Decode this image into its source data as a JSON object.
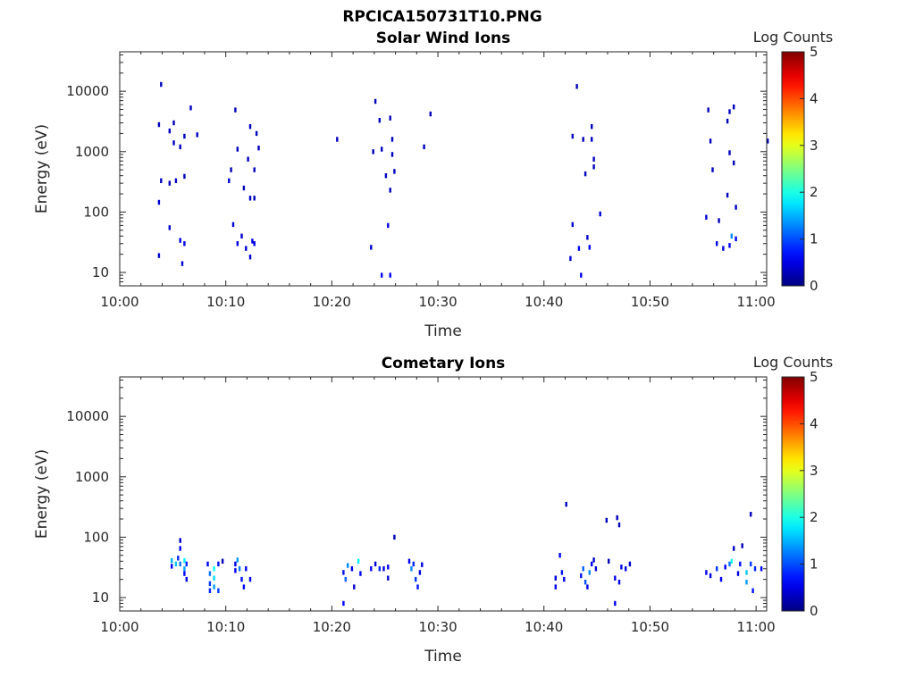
{
  "suptitle": "RPCICA150731T10.PNG",
  "chart_data": [
    {
      "type": "heatmap",
      "title": "Solar Wind Ions",
      "xlabel": "Time",
      "ylabel": "Energy (eV)",
      "xlim": [
        "10:00",
        "11:01"
      ],
      "ylim": [
        6,
        45000
      ],
      "y_scale": "log",
      "x_ticks": [
        "10:00",
        "10:10",
        "10:20",
        "10:30",
        "10:40",
        "10:50",
        "11:00"
      ],
      "y_ticks": [
        "10",
        "100",
        "1000",
        "10000"
      ],
      "colorbar": {
        "label": "Log Counts",
        "range": [
          0,
          5
        ],
        "ticks": [
          "0",
          "1",
          "2",
          "3",
          "4",
          "5"
        ],
        "colormap": "jet"
      },
      "cells": [
        {
          "t": "10:03.8",
          "e": 13000,
          "v": 0.3
        },
        {
          "t": "10:03.6",
          "e": 2800,
          "v": 0.3
        },
        {
          "t": "10:03.6",
          "e": 145,
          "v": 0.4
        },
        {
          "t": "10:03.8",
          "e": 330,
          "v": 0.3
        },
        {
          "t": "10:03.6",
          "e": 19,
          "v": 0.4
        },
        {
          "t": "10:04.6",
          "e": 300,
          "v": 0.3
        },
        {
          "t": "10:04.6",
          "e": 55,
          "v": 0.4
        },
        {
          "t": "10:04.6",
          "e": 2200,
          "v": 0.3
        },
        {
          "t": "10:05.0",
          "e": 3000,
          "v": 0.3
        },
        {
          "t": "10:05.0",
          "e": 1400,
          "v": 0.3
        },
        {
          "t": "10:05.2",
          "e": 330,
          "v": 0.3
        },
        {
          "t": "10:05.6",
          "e": 1200,
          "v": 0.3
        },
        {
          "t": "10:05.6",
          "e": 34,
          "v": 0.5
        },
        {
          "t": "10:05.8",
          "e": 14,
          "v": 0.4
        },
        {
          "t": "10:06.0",
          "e": 30,
          "v": 0.5
        },
        {
          "t": "10:06.0",
          "e": 390,
          "v": 0.3
        },
        {
          "t": "10:06.0",
          "e": 1800,
          "v": 0.3
        },
        {
          "t": "10:06.6",
          "e": 5300,
          "v": 0.3
        },
        {
          "t": "10:07.2",
          "e": 1900,
          "v": 0.3
        },
        {
          "t": "10:10.2",
          "e": 330,
          "v": 0.4
        },
        {
          "t": "10:10.4",
          "e": 500,
          "v": 0.3
        },
        {
          "t": "10:10.6",
          "e": 62,
          "v": 0.4
        },
        {
          "t": "10:10.8",
          "e": 4900,
          "v": 0.3
        },
        {
          "t": "10:11.0",
          "e": 1100,
          "v": 0.3
        },
        {
          "t": "10:11.0",
          "e": 30,
          "v": 0.5
        },
        {
          "t": "10:11.4",
          "e": 40,
          "v": 0.4
        },
        {
          "t": "10:11.6",
          "e": 250,
          "v": 0.3
        },
        {
          "t": "10:11.8",
          "e": 25,
          "v": 0.4
        },
        {
          "t": "10:12.0",
          "e": 750,
          "v": 0.3
        },
        {
          "t": "10:12.2",
          "e": 2600,
          "v": 0.3
        },
        {
          "t": "10:12.2",
          "e": 170,
          "v": 0.3
        },
        {
          "t": "10:12.4",
          "e": 33,
          "v": 0.5
        },
        {
          "t": "10:12.6",
          "e": 500,
          "v": 0.3
        },
        {
          "t": "10:12.6",
          "e": 170,
          "v": 0.3
        },
        {
          "t": "10:12.8",
          "e": 2000,
          "v": 0.3
        },
        {
          "t": "10:13.0",
          "e": 1150,
          "v": 0.3
        },
        {
          "t": "10:12.6",
          "e": 30,
          "v": 0.5
        },
        {
          "t": "10:12.2",
          "e": 18,
          "v": 0.4
        },
        {
          "t": "10:20.4",
          "e": 1600,
          "v": 0.3
        },
        {
          "t": "10:23.6",
          "e": 26,
          "v": 0.4
        },
        {
          "t": "10:23.8",
          "e": 1000,
          "v": 0.3
        },
        {
          "t": "10:24.0",
          "e": 6800,
          "v": 0.3
        },
        {
          "t": "10:24.4",
          "e": 3300,
          "v": 0.3
        },
        {
          "t": "10:24.6",
          "e": 9,
          "v": 0.6
        },
        {
          "t": "10:24.6",
          "e": 1100,
          "v": 0.3
        },
        {
          "t": "10:25.0",
          "e": 400,
          "v": 0.3
        },
        {
          "t": "10:25.2",
          "e": 60,
          "v": 0.5
        },
        {
          "t": "10:25.4",
          "e": 3600,
          "v": 0.3
        },
        {
          "t": "10:25.4",
          "e": 230,
          "v": 0.3
        },
        {
          "t": "10:25.6",
          "e": 1600,
          "v": 0.3
        },
        {
          "t": "10:25.6",
          "e": 900,
          "v": 0.3
        },
        {
          "t": "10:25.4",
          "e": 9,
          "v": 0.6
        },
        {
          "t": "10:25.8",
          "e": 470,
          "v": 0.3
        },
        {
          "t": "10:28.6",
          "e": 1200,
          "v": 0.3
        },
        {
          "t": "10:29.2",
          "e": 4200,
          "v": 0.3
        },
        {
          "t": "10:42.4",
          "e": 17,
          "v": 0.4
        },
        {
          "t": "10:42.6",
          "e": 62,
          "v": 0.4
        },
        {
          "t": "10:42.6",
          "e": 1800,
          "v": 0.3
        },
        {
          "t": "10:43.0",
          "e": 12000,
          "v": 0.3
        },
        {
          "t": "10:43.2",
          "e": 25,
          "v": 0.6
        },
        {
          "t": "10:43.4",
          "e": 9,
          "v": 0.6
        },
        {
          "t": "10:43.6",
          "e": 1600,
          "v": 0.3
        },
        {
          "t": "10:43.8",
          "e": 430,
          "v": 0.3
        },
        {
          "t": "10:44.0",
          "e": 38,
          "v": 0.4
        },
        {
          "t": "10:44.2",
          "e": 26,
          "v": 0.6
        },
        {
          "t": "10:44.4",
          "e": 1600,
          "v": 0.3
        },
        {
          "t": "10:44.4",
          "e": 2600,
          "v": 0.3
        },
        {
          "t": "10:44.6",
          "e": 750,
          "v": 0.3
        },
        {
          "t": "10:44.6",
          "e": 560,
          "v": 0.3
        },
        {
          "t": "10:45.2",
          "e": 93,
          "v": 0.4
        },
        {
          "t": "10:55.2",
          "e": 82,
          "v": 0.4
        },
        {
          "t": "10:55.4",
          "e": 4900,
          "v": 0.3
        },
        {
          "t": "10:55.6",
          "e": 1500,
          "v": 0.3
        },
        {
          "t": "10:55.8",
          "e": 500,
          "v": 0.3
        },
        {
          "t": "10:56.2",
          "e": 30,
          "v": 0.5
        },
        {
          "t": "10:56.4",
          "e": 72,
          "v": 0.3
        },
        {
          "t": "10:56.8",
          "e": 25,
          "v": 0.5
        },
        {
          "t": "10:57.2",
          "e": 3200,
          "v": 0.3
        },
        {
          "t": "10:57.2",
          "e": 190,
          "v": 0.3
        },
        {
          "t": "10:57.4",
          "e": 4600,
          "v": 0.3
        },
        {
          "t": "10:57.4",
          "e": 28,
          "v": 0.6
        },
        {
          "t": "10:57.6",
          "e": 40,
          "v": 1.3
        },
        {
          "t": "10:57.4",
          "e": 960,
          "v": 0.3
        },
        {
          "t": "10:57.8",
          "e": 5500,
          "v": 0.3
        },
        {
          "t": "10:57.8",
          "e": 650,
          "v": 0.3
        },
        {
          "t": "10:58.0",
          "e": 120,
          "v": 0.3
        },
        {
          "t": "10:58.0",
          "e": 36,
          "v": 0.6
        },
        {
          "t": "11:01.0",
          "e": 1500,
          "v": 0.3
        }
      ]
    },
    {
      "type": "heatmap",
      "title": "Cometary Ions",
      "xlabel": "Time",
      "ylabel": "Energy (eV)",
      "xlim": [
        "10:00",
        "11:01"
      ],
      "ylim": [
        6,
        45000
      ],
      "y_scale": "log",
      "x_ticks": [
        "10:00",
        "10:10",
        "10:20",
        "10:30",
        "10:40",
        "10:50",
        "11:00"
      ],
      "y_ticks": [
        "10",
        "100",
        "1000",
        "10000"
      ],
      "colorbar": {
        "label": "Log Counts",
        "range": [
          0,
          5
        ],
        "ticks": [
          "0",
          "1",
          "2",
          "3",
          "4",
          "5"
        ],
        "colormap": "jet"
      },
      "cells": [
        {
          "t": "10:04.8",
          "e": 41,
          "v": 1.5
        },
        {
          "t": "10:04.8",
          "e": 33,
          "v": 0.6
        },
        {
          "t": "10:05.2",
          "e": 36,
          "v": 1.6
        },
        {
          "t": "10:05.4",
          "e": 45,
          "v": 0.8
        },
        {
          "t": "10:05.6",
          "e": 36,
          "v": 1.2
        },
        {
          "t": "10:05.6",
          "e": 65,
          "v": 0.6
        },
        {
          "t": "10:05.6",
          "e": 88,
          "v": 0.4
        },
        {
          "t": "10:06.0",
          "e": 30,
          "v": 1.4
        },
        {
          "t": "10:06.0",
          "e": 41,
          "v": 1.8
        },
        {
          "t": "10:06.0",
          "e": 25,
          "v": 0.6
        },
        {
          "t": "10:06.2",
          "e": 20,
          "v": 0.5
        },
        {
          "t": "10:06.2",
          "e": 36,
          "v": 0.8
        },
        {
          "t": "10:08.2",
          "e": 36,
          "v": 0.6
        },
        {
          "t": "10:08.4",
          "e": 25,
          "v": 1.2
        },
        {
          "t": "10:08.4",
          "e": 17,
          "v": 0.9
        },
        {
          "t": "10:08.4",
          "e": 13,
          "v": 0.8
        },
        {
          "t": "10:08.8",
          "e": 30,
          "v": 1.9
        },
        {
          "t": "10:08.8",
          "e": 21,
          "v": 1.7
        },
        {
          "t": "10:08.8",
          "e": 15,
          "v": 1.4
        },
        {
          "t": "10:09.2",
          "e": 13,
          "v": 0.9
        },
        {
          "t": "10:09.2",
          "e": 36,
          "v": 0.7
        },
        {
          "t": "10:09.6",
          "e": 40,
          "v": 0.3
        },
        {
          "t": "10:10.8",
          "e": 36,
          "v": 0.5
        },
        {
          "t": "10:10.8",
          "e": 28,
          "v": 0.6
        },
        {
          "t": "10:11.0",
          "e": 42,
          "v": 1.4
        },
        {
          "t": "10:11.2",
          "e": 30,
          "v": 1.2
        },
        {
          "t": "10:11.4",
          "e": 20,
          "v": 0.7
        },
        {
          "t": "10:11.6",
          "e": 15,
          "v": 0.6
        },
        {
          "t": "10:11.8",
          "e": 30,
          "v": 0.6
        },
        {
          "t": "10:12.2",
          "e": 20,
          "v": 0.5
        },
        {
          "t": "10:21.0",
          "e": 8,
          "v": 0.6
        },
        {
          "t": "10:21.0",
          "e": 26,
          "v": 0.7
        },
        {
          "t": "10:21.2",
          "e": 20,
          "v": 1.1
        },
        {
          "t": "10:21.4",
          "e": 34,
          "v": 1.3
        },
        {
          "t": "10:21.8",
          "e": 30,
          "v": 0.5
        },
        {
          "t": "10:22.0",
          "e": 15,
          "v": 0.4
        },
        {
          "t": "10:22.4",
          "e": 40,
          "v": 1.8
        },
        {
          "t": "10:22.6",
          "e": 25,
          "v": 0.6
        },
        {
          "t": "10:23.6",
          "e": 30,
          "v": 0.6
        },
        {
          "t": "10:24.0",
          "e": 36,
          "v": 0.4
        },
        {
          "t": "10:24.4",
          "e": 30,
          "v": 0.8
        },
        {
          "t": "10:24.8",
          "e": 30,
          "v": 0.5
        },
        {
          "t": "10:25.2",
          "e": 21,
          "v": 0.4
        },
        {
          "t": "10:25.2",
          "e": 32,
          "v": 0.6
        },
        {
          "t": "10:25.8",
          "e": 100,
          "v": 0.3
        },
        {
          "t": "10:27.2",
          "e": 40,
          "v": 0.6
        },
        {
          "t": "10:27.4",
          "e": 30,
          "v": 1.3
        },
        {
          "t": "10:27.6",
          "e": 36,
          "v": 0.8
        },
        {
          "t": "10:27.8",
          "e": 20,
          "v": 0.9
        },
        {
          "t": "10:28.0",
          "e": 15,
          "v": 0.7
        },
        {
          "t": "10:28.2",
          "e": 26,
          "v": 0.5
        },
        {
          "t": "10:28.4",
          "e": 35,
          "v": 0.5
        },
        {
          "t": "10:41.0",
          "e": 21,
          "v": 0.5
        },
        {
          "t": "10:41.0",
          "e": 15,
          "v": 0.5
        },
        {
          "t": "10:41.4",
          "e": 50,
          "v": 0.6
        },
        {
          "t": "10:41.6",
          "e": 26,
          "v": 0.7
        },
        {
          "t": "10:41.8",
          "e": 20,
          "v": 0.5
        },
        {
          "t": "10:42.0",
          "e": 350,
          "v": 0.3
        },
        {
          "t": "10:43.4",
          "e": 23,
          "v": 0.7
        },
        {
          "t": "10:43.6",
          "e": 30,
          "v": 1.1
        },
        {
          "t": "10:43.8",
          "e": 18,
          "v": 1.0
        },
        {
          "t": "10:44.0",
          "e": 15,
          "v": 0.6
        },
        {
          "t": "10:44.2",
          "e": 26,
          "v": 1.3
        },
        {
          "t": "10:44.4",
          "e": 36,
          "v": 0.5
        },
        {
          "t": "10:44.6",
          "e": 42,
          "v": 0.4
        },
        {
          "t": "10:44.8",
          "e": 30,
          "v": 0.4
        },
        {
          "t": "10:45.8",
          "e": 190,
          "v": 0.3
        },
        {
          "t": "10:46.0",
          "e": 40,
          "v": 0.3
        },
        {
          "t": "10:46.6",
          "e": 21,
          "v": 0.5
        },
        {
          "t": "10:46.6",
          "e": 8,
          "v": 0.6
        },
        {
          "t": "10:46.8",
          "e": 210,
          "v": 0.3
        },
        {
          "t": "10:47.0",
          "e": 160,
          "v": 0.3
        },
        {
          "t": "10:47.0",
          "e": 18,
          "v": 0.6
        },
        {
          "t": "10:47.2",
          "e": 32,
          "v": 0.5
        },
        {
          "t": "10:47.6",
          "e": 30,
          "v": 0.5
        },
        {
          "t": "10:48.0",
          "e": 36,
          "v": 0.4
        },
        {
          "t": "10:55.2",
          "e": 26,
          "v": 0.6
        },
        {
          "t": "10:55.6",
          "e": 23,
          "v": 0.5
        },
        {
          "t": "10:56.2",
          "e": 30,
          "v": 0.9
        },
        {
          "t": "10:56.6",
          "e": 20,
          "v": 0.6
        },
        {
          "t": "10:57.0",
          "e": 32,
          "v": 0.6
        },
        {
          "t": "10:57.4",
          "e": 36,
          "v": 1.2
        },
        {
          "t": "10:57.6",
          "e": 40,
          "v": 2.0
        },
        {
          "t": "10:57.8",
          "e": 65,
          "v": 0.4
        },
        {
          "t": "10:58.2",
          "e": 25,
          "v": 0.5
        },
        {
          "t": "10:58.4",
          "e": 36,
          "v": 0.7
        },
        {
          "t": "10:58.6",
          "e": 72,
          "v": 0.3
        },
        {
          "t": "10:59.0",
          "e": 26,
          "v": 1.6
        },
        {
          "t": "10:59.0",
          "e": 18,
          "v": 1.4
        },
        {
          "t": "10:59.4",
          "e": 36,
          "v": 0.9
        },
        {
          "t": "10:59.6",
          "e": 13,
          "v": 0.7
        },
        {
          "t": "10:59.8",
          "e": 30,
          "v": 0.8
        },
        {
          "t": "10:59.4",
          "e": 240,
          "v": 0.3
        },
        {
          "t": "11:00.4",
          "e": 30,
          "v": 0.6
        }
      ]
    }
  ]
}
